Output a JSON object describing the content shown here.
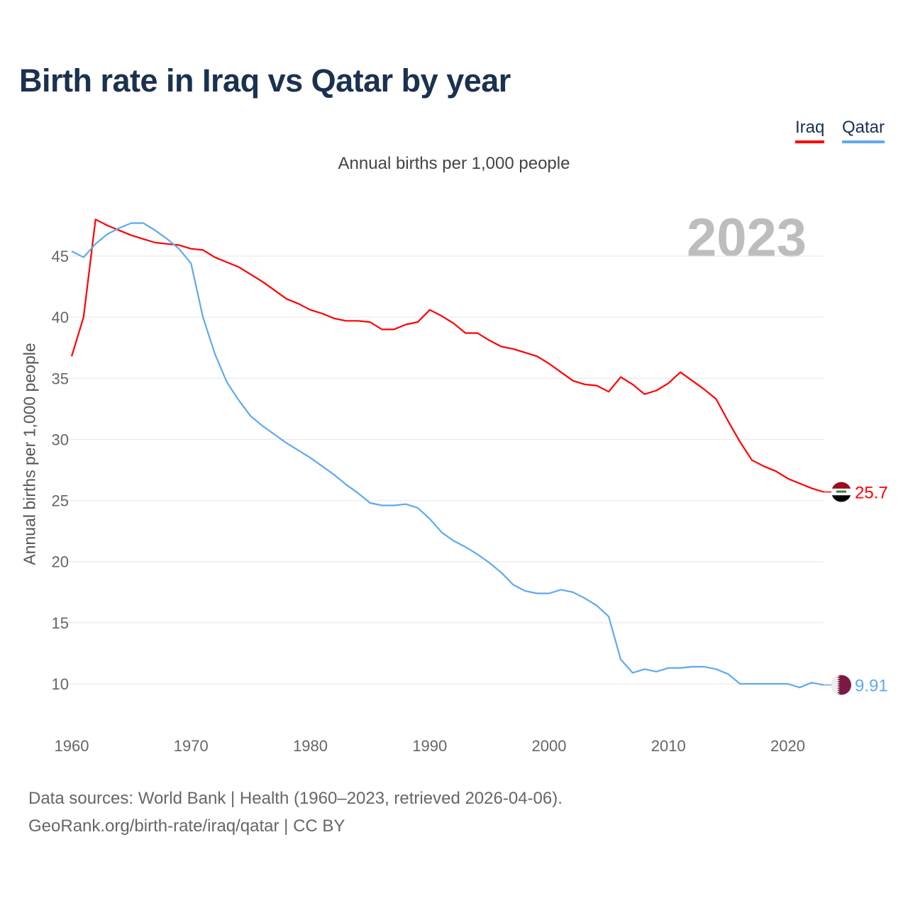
{
  "title": "Birth rate in Iraq vs Qatar by year",
  "legend": {
    "iraq": "Iraq",
    "qatar": "Qatar"
  },
  "subtitle": "Annual births per 1,000 people",
  "current_year": "2023",
  "source_line1": "Data sources: World Bank | Health (1960–2023, retrieved 2026-04-06).",
  "source_line2": "GeoRank.org/birth-rate/iraq/qatar | CC BY",
  "chart_data": {
    "type": "line",
    "title": "Birth rate in Iraq vs Qatar by year",
    "xlabel": "",
    "ylabel": "Annual births per 1,000 people",
    "xlim": [
      1960,
      2023
    ],
    "ylim": [
      7,
      48
    ],
    "x_ticks": [
      1960,
      1970,
      1980,
      1990,
      2000,
      2010,
      2020
    ],
    "y_ticks": [
      10,
      15,
      20,
      25,
      30,
      35,
      40,
      45
    ],
    "grid": true,
    "legend_position": "top-right",
    "x_start": 1960,
    "series": [
      {
        "name": "Iraq",
        "color": "#ff0000",
        "end_label": "25.7",
        "values": [
          36.8,
          40.0,
          48.0,
          47.5,
          47.1,
          46.7,
          46.4,
          46.1,
          46.0,
          45.9,
          45.6,
          45.5,
          44.9,
          44.5,
          44.1,
          43.5,
          42.9,
          42.2,
          41.5,
          41.1,
          40.6,
          40.3,
          39.9,
          39.7,
          39.7,
          39.6,
          39.0,
          39.0,
          39.4,
          39.6,
          40.6,
          40.1,
          39.5,
          38.7,
          38.7,
          38.1,
          37.6,
          37.4,
          37.1,
          36.8,
          36.2,
          35.5,
          34.8,
          34.5,
          34.4,
          33.9,
          35.1,
          34.5,
          33.7,
          34.0,
          34.6,
          35.5,
          34.8,
          34.1,
          33.3,
          31.5,
          29.8,
          28.3,
          27.8,
          27.4,
          26.8,
          26.4,
          26.0,
          25.7
        ]
      },
      {
        "name": "Qatar",
        "color": "#5fa9ee",
        "end_label": "9.91",
        "values": [
          45.4,
          44.9,
          46.0,
          46.8,
          47.3,
          47.7,
          47.7,
          47.1,
          46.4,
          45.6,
          44.4,
          40.0,
          37.0,
          34.7,
          33.2,
          31.9,
          31.1,
          30.4,
          29.7,
          29.1,
          28.5,
          27.8,
          27.1,
          26.3,
          25.6,
          24.8,
          24.6,
          24.6,
          24.7,
          24.4,
          23.5,
          22.4,
          21.7,
          21.2,
          20.6,
          19.9,
          19.1,
          18.1,
          17.6,
          17.4,
          17.4,
          17.7,
          17.5,
          17.0,
          16.4,
          15.5,
          12.0,
          10.9,
          11.2,
          11.0,
          11.3,
          11.3,
          11.4,
          11.4,
          11.2,
          10.8,
          10.0,
          10.0,
          10.0,
          10.0,
          10.0,
          9.7,
          10.1,
          9.91
        ]
      }
    ]
  }
}
